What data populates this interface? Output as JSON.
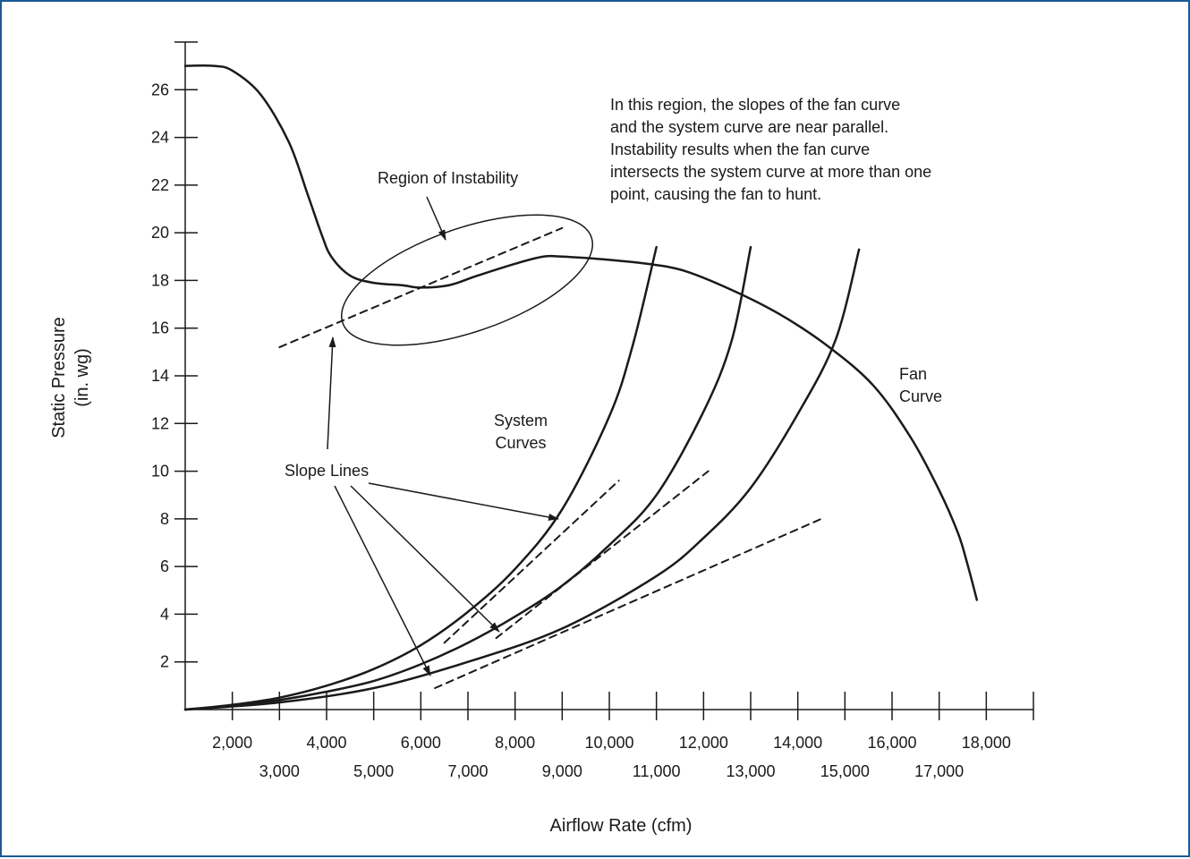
{
  "frame": {
    "border_color": "#1a5a96"
  },
  "chart_data": {
    "type": "line",
    "title": "",
    "xlabel": "Airflow Rate (cfm)",
    "ylabel_lines": [
      "Static Pressure",
      "(in. wg)"
    ],
    "x_tick_labels_upper": [
      "2,000",
      "4,000",
      "6,000",
      "8,000",
      "10,000",
      "12,000",
      "14,000",
      "16,000",
      "18,000"
    ],
    "x_tick_labels_lower": [
      "3,000",
      "5,000",
      "7,000",
      "9,000",
      "11,000",
      "13,000",
      "15,000",
      "17,000"
    ],
    "y_tick_labels": [
      "2",
      "4",
      "6",
      "8",
      "10",
      "12",
      "14",
      "16",
      "18",
      "20",
      "22",
      "24",
      "26"
    ],
    "xlim": [
      1000,
      19000
    ],
    "ylim": [
      0,
      28
    ],
    "series": [
      {
        "name": "Fan Curve",
        "style": "solid",
        "x": [
          1000,
          1600,
          2000,
          2600,
          3200,
          3600,
          3900,
          4100,
          4500,
          5000,
          5600,
          6000,
          6600,
          7200,
          8000,
          8600,
          9000,
          9800,
          10800,
          11600,
          12600,
          13600,
          14600,
          15600,
          16400,
          17000,
          17400,
          17600,
          17800
        ],
        "y": [
          27.0,
          27.0,
          26.8,
          25.8,
          23.8,
          21.6,
          19.9,
          19.0,
          18.2,
          17.9,
          17.8,
          17.7,
          17.8,
          18.2,
          18.7,
          19.0,
          19.0,
          18.9,
          18.7,
          18.4,
          17.6,
          16.6,
          15.3,
          13.6,
          11.4,
          9.2,
          7.4,
          6.1,
          4.6
        ]
      },
      {
        "name": "System Curve 1",
        "style": "solid",
        "x": [
          1000,
          2000,
          3000,
          4000,
          5000,
          6000,
          7000,
          8000,
          9000,
          10000,
          10500,
          11000
        ],
        "y": [
          0.0,
          0.2,
          0.5,
          1.0,
          1.7,
          2.7,
          4.1,
          5.9,
          8.4,
          12.3,
          15.3,
          19.4
        ]
      },
      {
        "name": "System Curve 2",
        "style": "solid",
        "x": [
          1000,
          2000,
          3000,
          4000,
          5000,
          6000,
          7000,
          8000,
          9000,
          10000,
          11000,
          12000,
          12600,
          13000
        ],
        "y": [
          0.0,
          0.15,
          0.4,
          0.75,
          1.2,
          1.9,
          2.8,
          3.9,
          5.2,
          6.9,
          9.0,
          12.5,
          15.5,
          19.4
        ]
      },
      {
        "name": "System Curve 3",
        "style": "solid",
        "x": [
          1000,
          3000,
          5000,
          7000,
          9000,
          11000,
          12000,
          13000,
          14000,
          14800,
          15300
        ],
        "y": [
          0.0,
          0.3,
          0.9,
          2.0,
          3.4,
          5.6,
          7.2,
          9.3,
          12.4,
          15.5,
          19.3
        ]
      },
      {
        "name": "Slope Line A",
        "style": "dashed",
        "x": [
          3000,
          9000
        ],
        "y": [
          15.2,
          20.2
        ]
      },
      {
        "name": "Slope Line B",
        "style": "dashed",
        "x": [
          6500,
          10200
        ],
        "y": [
          2.8,
          9.6
        ]
      },
      {
        "name": "Slope Line C",
        "style": "dashed",
        "x": [
          7600,
          12100
        ],
        "y": [
          3.0,
          10.0
        ]
      },
      {
        "name": "Slope Line D",
        "style": "dashed",
        "x": [
          6300,
          14500
        ],
        "y": [
          0.9,
          8.0
        ]
      }
    ],
    "annotations": {
      "region_label": "Region of Instability",
      "slope_label": "Slope Lines",
      "system_label_lines": [
        "System",
        "Curves"
      ],
      "fan_label_lines": [
        "Fan",
        "Curve"
      ],
      "note_lines": [
        "In this region, the slopes of the fan curve",
        "and the system curve are near parallel.",
        "Instability results when the fan curve",
        "intersects the system curve at more than one",
        "point, causing the fan to hunt."
      ]
    }
  }
}
